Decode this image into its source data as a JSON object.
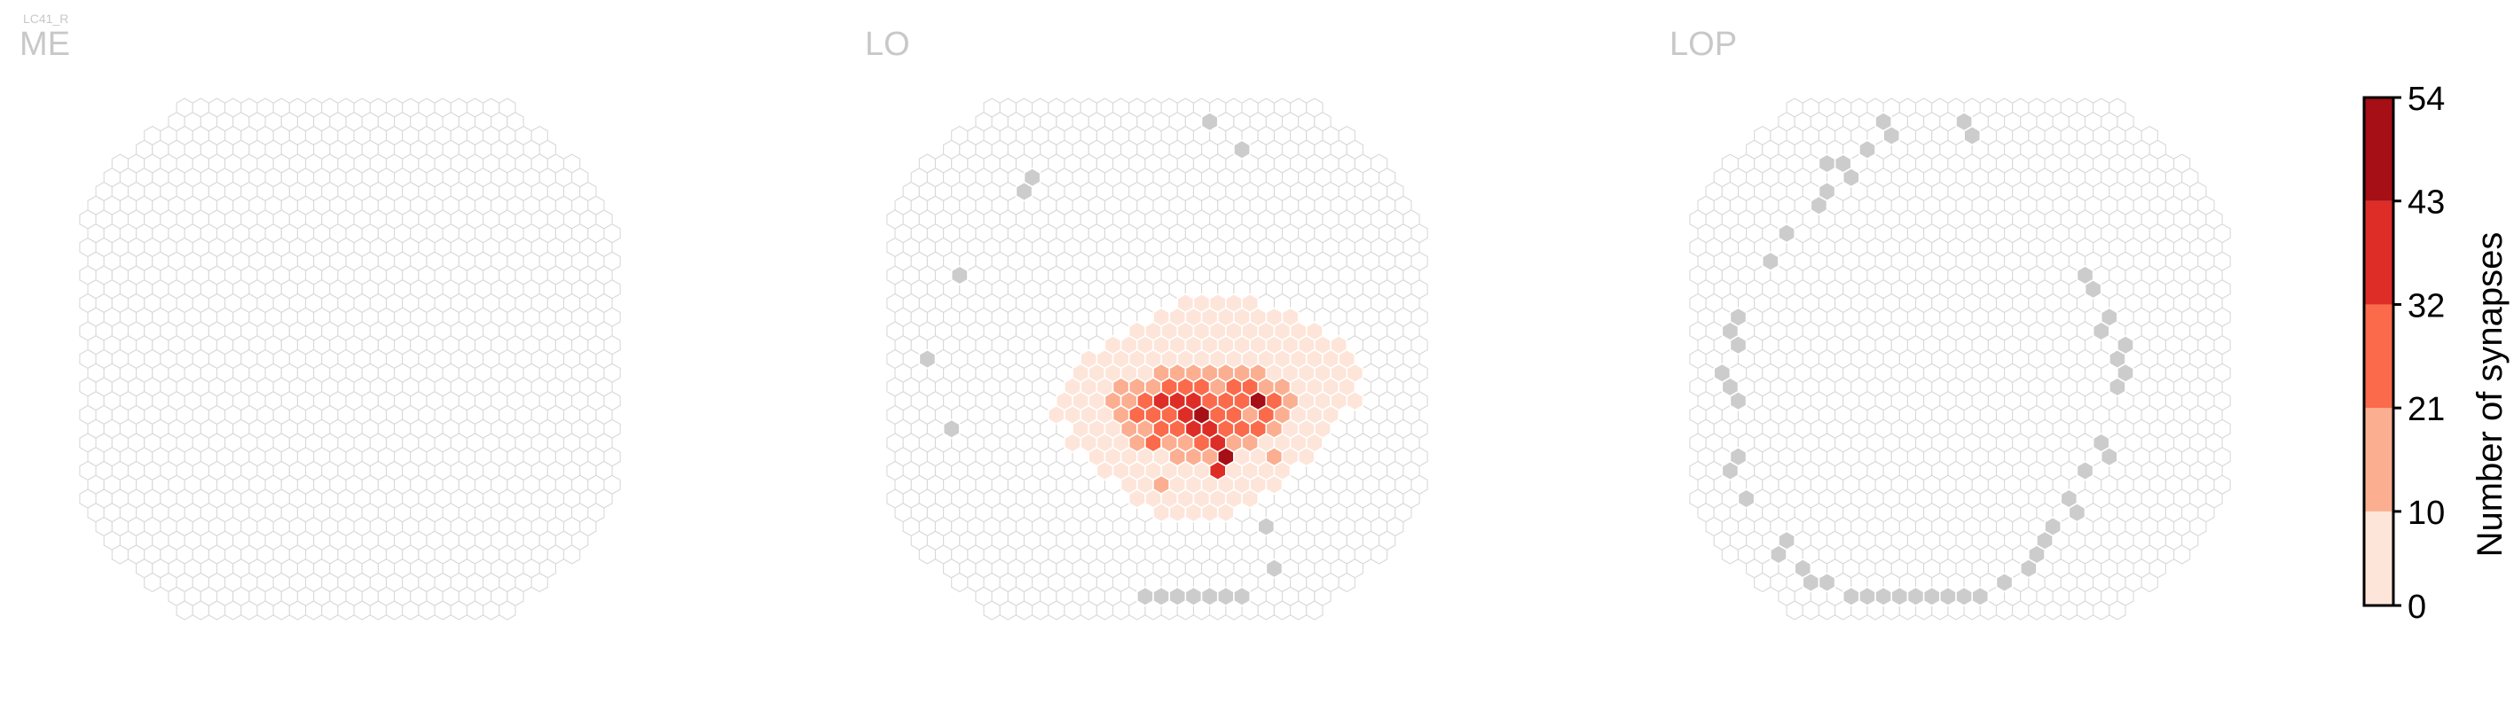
{
  "chart_data": {
    "type": "heatmap",
    "cell_type": "LC41_R",
    "panels": [
      {
        "title": "ME",
        "highlighted": {},
        "gray_cells": []
      },
      {
        "title": "LO",
        "highlighted": {
          "14,2": 6,
          "14,3": 5,
          "14,4": 5,
          "14,5": 5,
          "14,6": 4,
          "15,0": 4,
          "15,1": 6,
          "15,2": 5,
          "15,3": 6,
          "15,4": 6,
          "15,5": 5,
          "15,6": 5,
          "15,7": 4,
          "15,8": 4,
          "16,-1": 5,
          "16,0": 5,
          "16,1": 6,
          "16,2": 7,
          "16,3": 6,
          "16,4": 5,
          "16,5": 5,
          "16,6": 6,
          "16,7": 5,
          "16,8": 5,
          "16,9": 4,
          "16,10": 4,
          "17,-3": 5,
          "17,-2": 6,
          "17,-1": 6,
          "17,0": 7,
          "17,1": 8,
          "17,2": 7,
          "17,3": 6,
          "17,4": 6,
          "17,5": 7,
          "17,6": 6,
          "17,7": 5,
          "17,8": 5,
          "17,9": 4,
          "17,10": 4,
          "17,11": 3,
          "18,-4": 4,
          "18,-3": 5,
          "18,-2": 6,
          "18,-1": 8,
          "18,0": 9,
          "18,1": 10,
          "18,2": 9,
          "18,3": 8,
          "18,4": 7,
          "18,5": 8,
          "18,6": 9,
          "18,7": 7,
          "18,8": 6,
          "18,9": 5,
          "18,10": 4,
          "18,11": 3,
          "18,12": 2,
          "19,-5": 3,
          "19,-4": 4,
          "19,-3": 6,
          "19,-2": 7,
          "19,-1": 9,
          "19,0": 12,
          "19,1": 14,
          "19,2": 18,
          "19,3": 16,
          "19,4": 12,
          "19,5": 14,
          "19,6": 15,
          "19,7": 10,
          "19,8": 8,
          "19,9": 6,
          "19,10": 4,
          "19,11": 3,
          "19,12": 2,
          "20,-5": 3,
          "20,-4": 5,
          "20,-3": 9,
          "20,-2": 11,
          "20,-1": 14,
          "20,0": 20,
          "20,1": 24,
          "20,2": 32,
          "20,3": 28,
          "20,4": 19,
          "20,5": 22,
          "20,6": 30,
          "20,7": 16,
          "20,8": 12,
          "20,9": 8,
          "20,10": 4,
          "20,11": 2,
          "20,12": 1,
          "21,-6": 2,
          "21,-5": 4,
          "21,-4": 6,
          "21,-3": 12,
          "21,-2": 18,
          "21,-1": 24,
          "21,0": 34,
          "21,1": 38,
          "21,2": 35,
          "21,3": 30,
          "21,4": 26,
          "21,5": 28,
          "21,6": 45,
          "21,7": 25,
          "21,8": 18,
          "21,9": 8,
          "21,10": 4,
          "21,11": 2,
          "21,12": 1,
          "22,-6": 1,
          "22,-5": 3,
          "22,-4": 5,
          "22,-3": 8,
          "22,-2": 17,
          "22,-1": 22,
          "22,0": 28,
          "22,1": 30,
          "22,2": 38,
          "22,3": 47,
          "22,4": 30,
          "22,5": 24,
          "22,6": 20,
          "22,7": 28,
          "22,8": 14,
          "22,9": 6,
          "22,10": 3,
          "22,11": 1,
          "23,-5": 2,
          "23,-4": 4,
          "23,-3": 7,
          "23,-2": 12,
          "23,-1": 14,
          "23,0": 22,
          "23,1": 26,
          "23,2": 34,
          "23,3": 40,
          "23,4": 28,
          "23,5": 22,
          "23,6": 25,
          "23,7": 18,
          "23,8": 10,
          "23,9": 5,
          "23,10": 2,
          "24,-5": 1,
          "24,-4": 3,
          "24,-3": 5,
          "24,-2": 9,
          "24,-1": 12,
          "24,0": 24,
          "24,1": 16,
          "24,2": 20,
          "24,3": 28,
          "24,4": 36,
          "24,5": 18,
          "24,6": 12,
          "24,7": 8,
          "24,8": 6,
          "24,9": 3,
          "24,10": 1,
          "25,-4": 2,
          "25,-3": 4,
          "25,-2": 6,
          "25,-1": 8,
          "25,0": 10,
          "25,1": 14,
          "25,2": 12,
          "25,3": 16,
          "25,4": 54,
          "25,5": 10,
          "25,6": 7,
          "25,7": 12,
          "25,8": 4,
          "25,9": 2,
          "26,-3": 2,
          "26,-2": 4,
          "26,-1": 5,
          "26,0": 6,
          "26,1": 8,
          "26,2": 7,
          "26,3": 10,
          "26,4": 36,
          "26,5": 7,
          "26,6": 5,
          "26,7": 4,
          "26,8": 2,
          "27,-2": 2,
          "27,-1": 4,
          "27,0": 16,
          "27,1": 5,
          "27,2": 6,
          "27,3": 8,
          "27,4": 5,
          "27,5": 4,
          "27,6": 3,
          "27,7": 2,
          "28,-1": 2,
          "28,0": 3,
          "28,1": 4,
          "28,2": 4,
          "28,3": 5,
          "28,4": 4,
          "28,5": 3,
          "28,6": 2,
          "29,0": 2,
          "29,1": 3,
          "29,2": 3,
          "29,3": 3,
          "29,4": 2
        },
        "gray_cells": [
          [
            1,
            3
          ],
          [
            3,
            5
          ],
          [
            5,
            -8
          ],
          [
            6,
            -8
          ],
          [
            12,
            -12
          ],
          [
            18,
            -14
          ],
          [
            23,
            -13
          ],
          [
            30,
            7
          ],
          [
            33,
            7
          ],
          [
            35,
            -1
          ],
          [
            35,
            0
          ],
          [
            35,
            1
          ],
          [
            35,
            2
          ],
          [
            35,
            3
          ],
          [
            35,
            4
          ],
          [
            35,
            5
          ]
        ]
      },
      {
        "title": "LOP",
        "highlighted": {},
        "gray_cells": [
          [
            1,
            -5
          ],
          [
            1,
            0
          ],
          [
            2,
            -4
          ],
          [
            2,
            1
          ],
          [
            3,
            -6
          ],
          [
            4,
            -8
          ],
          [
            4,
            -7
          ],
          [
            5,
            -7
          ],
          [
            6,
            -8
          ],
          [
            7,
            -9
          ],
          [
            9,
            -11
          ],
          [
            11,
            -12
          ],
          [
            12,
            8
          ],
          [
            13,
            8
          ],
          [
            15,
            -14
          ],
          [
            15,
            9
          ],
          [
            16,
            -14
          ],
          [
            16,
            9
          ],
          [
            17,
            -14
          ],
          [
            17,
            10
          ],
          [
            18,
            10
          ],
          [
            19,
            -15
          ],
          [
            19,
            10
          ],
          [
            20,
            -14
          ],
          [
            20,
            10
          ],
          [
            21,
            -14
          ],
          [
            24,
            9
          ],
          [
            25,
            -14
          ],
          [
            25,
            9
          ],
          [
            26,
            -14
          ],
          [
            26,
            8
          ],
          [
            28,
            -13
          ],
          [
            28,
            7
          ],
          [
            29,
            7
          ],
          [
            30,
            6
          ],
          [
            31,
            -11
          ],
          [
            31,
            5
          ],
          [
            32,
            -11
          ],
          [
            32,
            5
          ],
          [
            33,
            -10
          ],
          [
            33,
            4
          ],
          [
            34,
            -9
          ],
          [
            34,
            -8
          ],
          [
            34,
            3
          ],
          [
            35,
            -7
          ],
          [
            35,
            -6
          ],
          [
            35,
            -5
          ],
          [
            35,
            -4
          ],
          [
            35,
            -3
          ],
          [
            35,
            -2
          ],
          [
            35,
            -1
          ],
          [
            35,
            0
          ],
          [
            35,
            1
          ]
        ]
      }
    ],
    "colorbar": {
      "label": "Number of synapses",
      "ticks": [
        0,
        10,
        21,
        32,
        43,
        54
      ],
      "colors": [
        "#fee5d9",
        "#fcae91",
        "#fb6a4a",
        "#de2d26",
        "#a50f15"
      ]
    },
    "colors": {
      "empty_fill": "#ffffff",
      "empty_stroke": "#d9d9d9",
      "gray_fill": "#cccccc",
      "highlight_stroke": "#ffffff"
    }
  }
}
